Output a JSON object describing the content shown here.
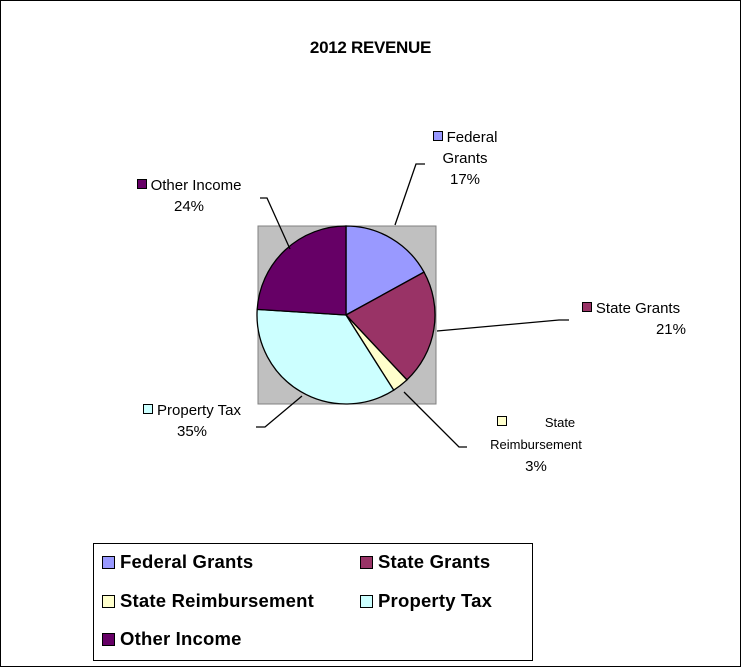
{
  "chart_data": {
    "type": "pie",
    "title": "2012 REVENUE",
    "categories": [
      "Federal Grants",
      "State Grants",
      "State Reimbursement",
      "Property Tax",
      "Other Income"
    ],
    "values": [
      17,
      21,
      3,
      35,
      24
    ],
    "value_labels": [
      "17%",
      "21%",
      "3%",
      "35%",
      "24%"
    ],
    "colors": [
      "#9999ff",
      "#993366",
      "#ffffcc",
      "#ccffff",
      "#660066"
    ],
    "plot_area_color": "#c0c0c0",
    "legend": "bottom"
  },
  "labels": {
    "federal_grants_line1": "Federal",
    "federal_grants_line2": "Grants",
    "federal_grants_pct": "17%",
    "state_grants": "State Grants",
    "state_grants_pct": "21%",
    "state_reimb_line1": "State",
    "state_reimb_line2": "Reimbursement",
    "state_reimb_pct": "3%",
    "property_tax": "Property Tax",
    "property_tax_pct": "35%",
    "other_income": "Other Income",
    "other_income_pct": "24%"
  },
  "legend": {
    "federal_grants": "Federal Grants",
    "state_grants": "State Grants",
    "state_reimbursement": "State Reimbursement",
    "property_tax": "Property Tax",
    "other_income": "Other Income"
  }
}
